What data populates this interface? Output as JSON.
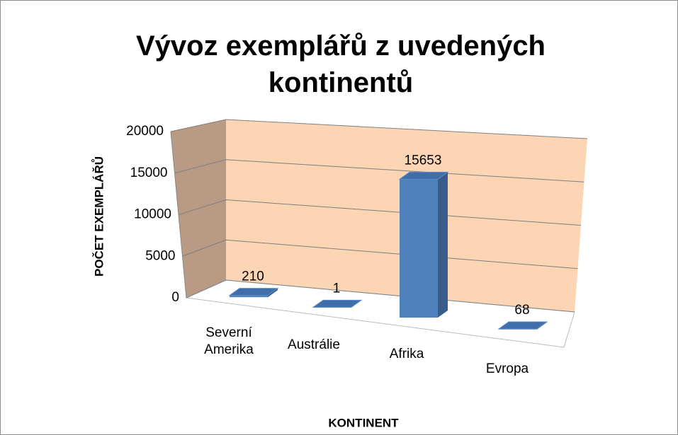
{
  "chart_data": {
    "type": "bar3d",
    "title": "Vývoz exemplářů z uvedených kontinentů",
    "x_label": "KONTINENT",
    "y_label": "POČET EXEMPLÁŘŮ",
    "categories": [
      "Severní Amerika",
      "Austrálie",
      "Afrika",
      "Evropa"
    ],
    "values": [
      210,
      1,
      15653,
      68
    ],
    "color": "#4f81bd",
    "ylim": [
      0,
      20000
    ],
    "yticks": [
      0,
      5000,
      10000,
      15000,
      20000
    ],
    "grid": true
  }
}
